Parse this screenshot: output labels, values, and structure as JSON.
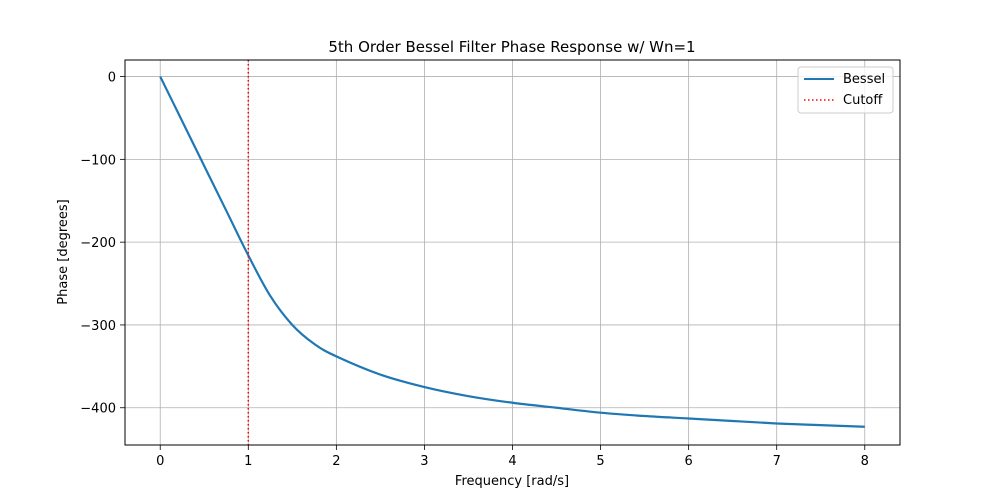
{
  "chart_data": {
    "type": "line",
    "title": "5th Order Bessel Filter Phase Response w/ Wn=1",
    "xlabel": "Frequency [rad/s]",
    "ylabel": "Phase [degrees]",
    "xlim": [
      -0.4,
      8.4
    ],
    "ylim": [
      -445,
      20
    ],
    "xticks": [
      0,
      1,
      2,
      3,
      4,
      5,
      6,
      7,
      8
    ],
    "yticks": [
      0,
      -100,
      -200,
      -300,
      -400
    ],
    "ytick_labels": [
      "0",
      "−100",
      "−200",
      "−300",
      "−400"
    ],
    "grid": true,
    "legend_position": "top-right",
    "series": [
      {
        "name": "Bessel",
        "color": "#1f77b4",
        "style": "solid",
        "x": [
          0,
          0.25,
          0.5,
          0.75,
          1.0,
          1.25,
          1.5,
          1.75,
          2.0,
          2.5,
          3.0,
          3.5,
          4.0,
          4.5,
          5.0,
          5.5,
          6.0,
          6.5,
          7.0,
          7.5,
          8.0
        ],
        "y": [
          0,
          -54,
          -108,
          -162,
          -216,
          -265,
          -300,
          -323,
          -338,
          -360,
          -375,
          -386,
          -394,
          -400,
          -406,
          -410,
          -413,
          -416,
          -419,
          -421,
          -423
        ]
      },
      {
        "name": "Cutoff",
        "color": "#ff0000",
        "style": "dotted",
        "vline_x": 1
      }
    ]
  }
}
